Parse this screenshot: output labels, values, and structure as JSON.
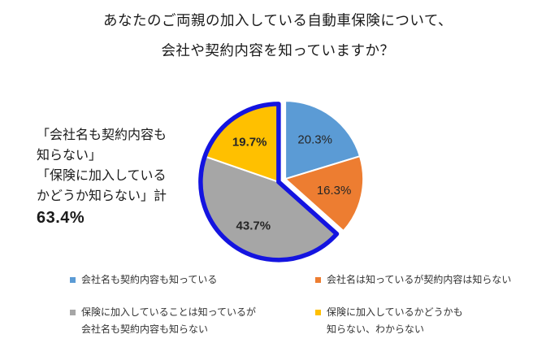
{
  "title": {
    "line1": "あなたのご両親の加入している自動車保険について、",
    "line2": "会社や契約内容を知っていますか？"
  },
  "annotation": {
    "lines": "「会社名も契約内容も\n知らない」\n「保険に加入している\nかどうか知らない」計",
    "total": "63.4%"
  },
  "chart_data": {
    "type": "pie",
    "title": "あなたのご両親の加入している自動車保険について、会社や契約内容を知っていますか？",
    "unit": "%",
    "direction": "clockwise",
    "start_angle_deg": 0,
    "legend_position": "bottom-two-columns",
    "outline_color": "#1414E0",
    "label_color": "#262626",
    "slice_border_color": "#FFFFFF",
    "highlight_total": "63.4",
    "slices": [
      {
        "label": "会社名も契約内容も知っている",
        "value": 20.3,
        "color": "#5B9BD5",
        "bold_label": false,
        "outlined": false
      },
      {
        "label": "会社名は知っているが契約内容は知らない",
        "value": 16.3,
        "color": "#ED7D31",
        "bold_label": false,
        "outlined": false
      },
      {
        "label": "保険に加入していることは知っているが\n会社名も契約内容も知らない",
        "value": 43.7,
        "color": "#A6A6A6",
        "bold_label": true,
        "outlined": true
      },
      {
        "label": "保険に加入しているかどうかも\n知らない、わからない",
        "value": 19.7,
        "color": "#FFC000",
        "bold_label": true,
        "outlined": true
      }
    ]
  }
}
